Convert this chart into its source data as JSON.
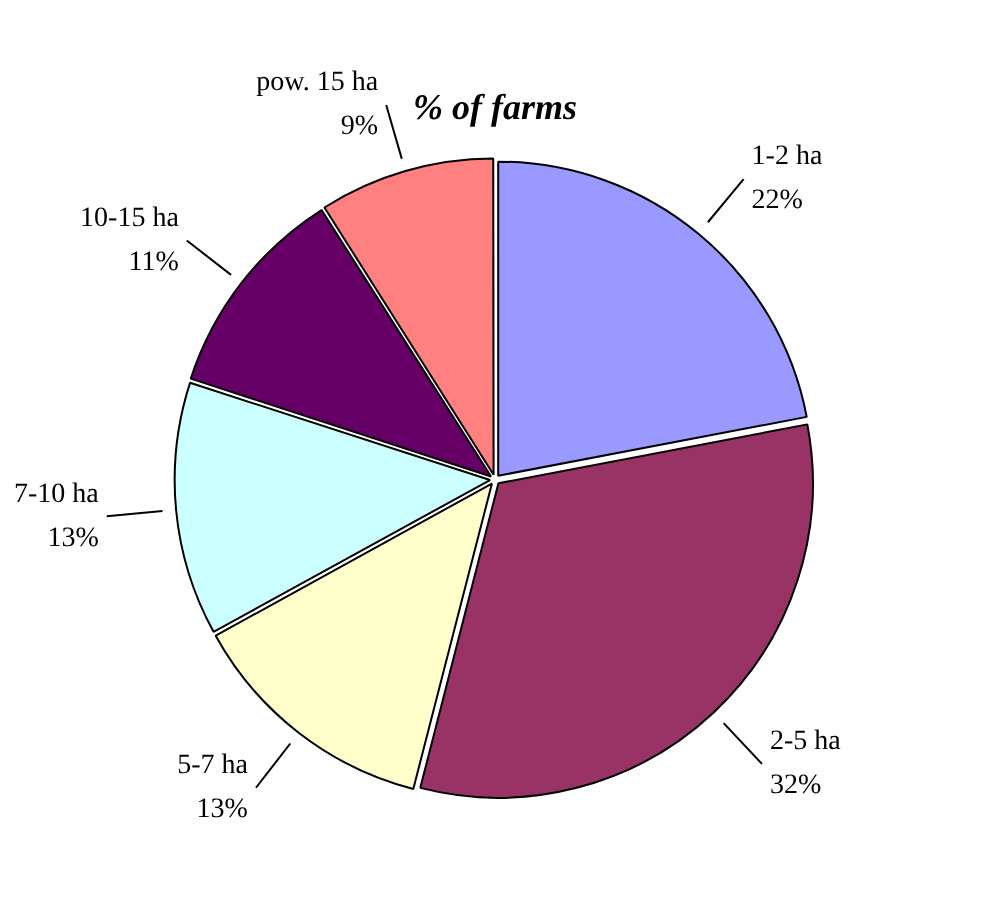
{
  "chart_data": {
    "type": "pie",
    "title": "% of farms",
    "categories": [
      "1-2 ha",
      "2-5 ha",
      "5-7 ha",
      "7-10 ha",
      "10-15 ha",
      "pow. 15 ha"
    ],
    "values": [
      22,
      32,
      13,
      13,
      11,
      9
    ],
    "colors": [
      "#9999ff",
      "#993366",
      "#ffffcc",
      "#ccffff",
      "#660066",
      "#ff8080"
    ],
    "value_labels": [
      "22%",
      "32%",
      "13%",
      "13%",
      "11%",
      "9%"
    ]
  }
}
